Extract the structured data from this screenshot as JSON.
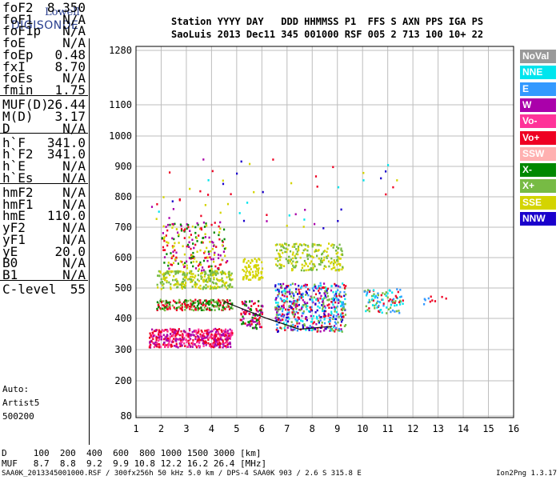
{
  "logo": {
    "line1": "Lowell",
    "line2": "DIGISONDE"
  },
  "header": {
    "row1": "Station YYYY DAY   DDD HHMMSS P1  FFS S AXN PPS IGA PS",
    "row2": "SaoLuis 2013 Dec11 345 001000 RSF 005 2 713 100 10+ 22"
  },
  "params": [
    {
      "k": "foF2",
      "v": "8.350"
    },
    {
      "k": "foF1",
      "v": "N/A"
    },
    {
      "k": "foF1p",
      "v": "N/A"
    },
    {
      "k": "foE",
      "v": "N/A"
    },
    {
      "k": "foEp",
      "v": "0.48"
    },
    {
      "k": "fxI",
      "v": "8.70"
    },
    {
      "k": "foEs",
      "v": "N/A"
    },
    {
      "k": "fmin",
      "v": "1.75"
    },
    {
      "k": "MUF(D)",
      "v": "26.44"
    },
    {
      "k": "M(D)",
      "v": "3.17"
    },
    {
      "k": "D",
      "v": "N/A"
    },
    {
      "k": "h`F",
      "v": "341.0"
    },
    {
      "k": "h`F2",
      "v": "341.0"
    },
    {
      "k": "h`E",
      "v": "N/A"
    },
    {
      "k": "h`Es",
      "v": "N/A"
    },
    {
      "k": "hmF2",
      "v": "N/A"
    },
    {
      "k": "hmF1",
      "v": "N/A"
    },
    {
      "k": "hmE",
      "v": "110.0"
    },
    {
      "k": "yF2",
      "v": "N/A"
    },
    {
      "k": "yF1",
      "v": "N/A"
    },
    {
      "k": "yE",
      "v": "20.0"
    },
    {
      "k": "B0",
      "v": "N/A"
    },
    {
      "k": "B1",
      "v": "N/A"
    },
    {
      "k": "C-level",
      "v": "55"
    }
  ],
  "auto": {
    "l1": "Auto:",
    "l2": "Artist5",
    "l3": "500200"
  },
  "bottom": {
    "row1": "D     100  200  400  600  800 1000 1500 3000 [km]",
    "row2": "MUF   8.7  8.8  9.2  9.9 10.8 12.2 16.2 26.4 [MHz]"
  },
  "footer": {
    "left": "SAA0K_2013345001000.RSF / 300fx256h 50 kHz 5.0 km / DPS-4 SAA0K 903 / 2.6 S 315.8 E",
    "right": "Ion2Png 1.3.17"
  },
  "legend": [
    {
      "label": "NoVal",
      "color": "#999999"
    },
    {
      "label": "NNE",
      "color": "#00e5ee"
    },
    {
      "label": "E",
      "color": "#3399ff"
    },
    {
      "label": "W",
      "color": "#aa00aa"
    },
    {
      "label": "Vo-",
      "color": "#ff3399"
    },
    {
      "label": "Vo+",
      "color": "#ee0022"
    },
    {
      "label": "SSW",
      "color": "#ffb0b0"
    },
    {
      "label": "X-",
      "color": "#008800"
    },
    {
      "label": "X+",
      "color": "#77bb44"
    },
    {
      "label": "SSE",
      "color": "#d4d400"
    },
    {
      "label": "NNW",
      "color": "#1a00cc"
    }
  ],
  "chart_data": {
    "type": "scatter",
    "xlim": [
      1,
      16
    ],
    "ylim": [
      80,
      1280
    ],
    "x_ticks": [
      1,
      2,
      3,
      4,
      5,
      6,
      7,
      8,
      9,
      10,
      11,
      12,
      13,
      14,
      15,
      16
    ],
    "y_ticks": [
      80,
      200,
      300,
      400,
      500,
      600,
      700,
      800,
      900,
      1000,
      1100,
      1280
    ],
    "y_scale": "nonlinear",
    "grid": true,
    "trace": [
      [
        4.5,
        455
      ],
      [
        6.2,
        400
      ],
      [
        7.5,
        365
      ],
      [
        8.8,
        375
      ]
    ],
    "clusters": [
      {
        "name": "o-trace low",
        "x": [
          1.5,
          4.8
        ],
        "y": [
          310,
          370
        ],
        "colors": [
          "#ee0022",
          "#aa00aa",
          "#ff3399"
        ],
        "n": 450
      },
      {
        "name": "o-trace band",
        "x": [
          1.8,
          4.8
        ],
        "y": [
          430,
          465
        ],
        "colors": [
          "#ee0022",
          "#008800",
          "#77bb44"
        ],
        "n": 220
      },
      {
        "name": "F2 SSE",
        "x": [
          1.8,
          4.8
        ],
        "y": [
          500,
          560
        ],
        "colors": [
          "#d4d400",
          "#77bb44"
        ],
        "n": 260
      },
      {
        "name": "spread",
        "x": [
          2.0,
          4.6
        ],
        "y": [
          560,
          720
        ],
        "colors": [
          "#aa00aa",
          "#ee0022",
          "#008800",
          "#d4d400"
        ],
        "n": 200
      },
      {
        "name": "mid",
        "x": [
          5.1,
          6.0
        ],
        "y": [
          370,
          460
        ],
        "colors": [
          "#008800",
          "#ee0022",
          "#aa00aa"
        ],
        "n": 100
      },
      {
        "name": "mid SSE",
        "x": [
          5.2,
          6.0
        ],
        "y": [
          530,
          600
        ],
        "colors": [
          "#d4d400"
        ],
        "n": 80
      },
      {
        "name": "x7 low",
        "x": [
          6.5,
          9.3
        ],
        "y": [
          360,
          520
        ],
        "colors": [
          "#3399ff",
          "#00e5ee",
          "#aa00aa",
          "#1a00cc",
          "#ee0022",
          "#77bb44"
        ],
        "n": 520
      },
      {
        "name": "x7 SSE",
        "x": [
          6.5,
          9.2
        ],
        "y": [
          560,
          650
        ],
        "colors": [
          "#d4d400",
          "#77bb44"
        ],
        "n": 220
      },
      {
        "name": "x10",
        "x": [
          10.0,
          11.6
        ],
        "y": [
          420,
          500
        ],
        "colors": [
          "#77bb44",
          "#ee0022",
          "#3399ff",
          "#00e5ee"
        ],
        "n": 100
      },
      {
        "name": "x12",
        "x": [
          12.3,
          13.3
        ],
        "y": [
          440,
          480
        ],
        "colors": [
          "#3399ff",
          "#00e5ee",
          "#ee0022"
        ],
        "n": 10
      },
      {
        "name": "sparse high",
        "x": [
          1.5,
          11.5
        ],
        "y": [
          700,
          950
        ],
        "colors": [
          "#d4d400",
          "#ee0022",
          "#aa00aa",
          "#1a00cc",
          "#00e5ee"
        ],
        "n": 60
      }
    ]
  }
}
